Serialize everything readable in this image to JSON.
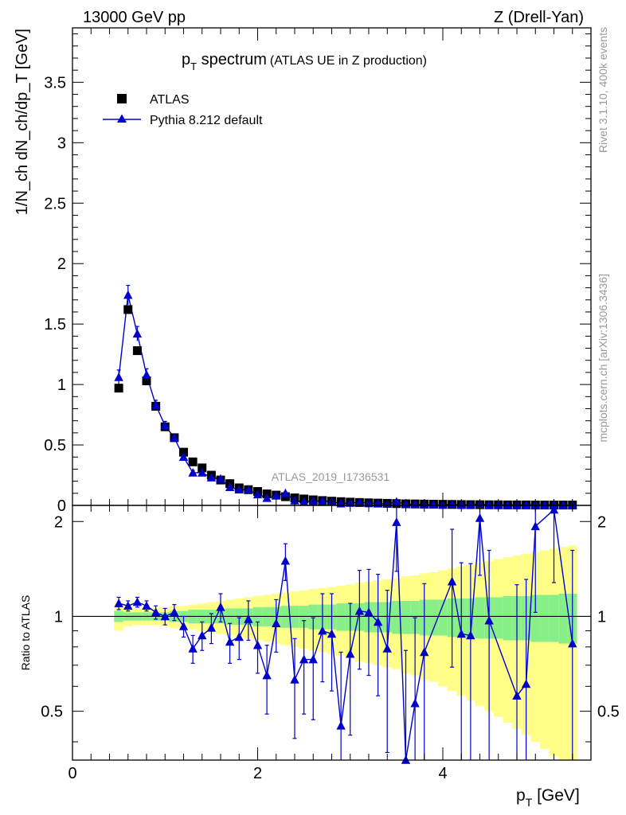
{
  "header": {
    "energy_label": "13000 GeV pp",
    "process_label": "Z (Drell-Yan)"
  },
  "side_text": {
    "rivet": "Rivet 3.1.10,  400k events",
    "mcplots": "mcplots.cern.ch [arXiv:1306.3436]"
  },
  "colors": {
    "data": "#000000",
    "mc": "#0000cc",
    "band_inner": "#88ee88",
    "band_outer": "#ffff88",
    "analysis_id": "#999999",
    "side_text": "#999999"
  },
  "chart_data": [
    {
      "type": "scatter",
      "panel": "main",
      "title_main": "p",
      "title_sub": "T",
      "title_rest": " spectrum",
      "title_paren": "(ATLAS UE in Z production)",
      "ylabel": "1/N_ch dN_ch/dp_T [GeV]",
      "xlim": [
        0,
        5.6
      ],
      "ylim": [
        0,
        3.95
      ],
      "yticks": [
        0,
        0.5,
        1,
        1.5,
        2,
        2.5,
        3,
        3.5
      ],
      "ytick_labels": [
        "0",
        "0.5",
        "1",
        "1.5",
        "2",
        "2.5",
        "3",
        "3.5"
      ],
      "analysis_id": "ATLAS_2019_I1736531",
      "legend": [
        {
          "label": "ATLAS",
          "marker": "square"
        },
        {
          "label": "Pythia 8.212 default",
          "marker": "triangle-line"
        }
      ],
      "x": [
        0.5,
        0.6,
        0.7,
        0.8,
        0.9,
        1.0,
        1.1,
        1.2,
        1.3,
        1.4,
        1.5,
        1.6,
        1.7,
        1.8,
        1.9,
        2.0,
        2.1,
        2.2,
        2.3,
        2.4,
        2.5,
        2.6,
        2.7,
        2.8,
        2.9,
        3.0,
        3.1,
        3.2,
        3.3,
        3.4,
        3.5,
        3.6,
        3.7,
        3.8,
        3.9,
        4.0,
        4.1,
        4.2,
        4.3,
        4.4,
        4.5,
        4.6,
        4.7,
        4.8,
        4.9,
        5.0,
        5.1,
        5.2,
        5.3,
        5.4
      ],
      "series": [
        {
          "name": "ATLAS",
          "values": [
            0.97,
            1.62,
            1.28,
            1.03,
            0.82,
            0.65,
            0.56,
            0.44,
            0.36,
            0.31,
            0.25,
            0.21,
            0.18,
            0.145,
            0.13,
            0.115,
            0.095,
            0.085,
            0.072,
            0.062,
            0.053,
            0.046,
            0.04,
            0.035,
            0.031,
            0.027,
            0.024,
            0.021,
            0.019,
            0.017,
            0.015,
            0.013,
            0.012,
            0.011,
            0.01,
            0.009,
            0.008,
            0.007,
            0.006,
            0.006,
            0.005,
            0.005,
            0.004,
            0.004,
            0.004,
            0.003,
            0.003,
            0.003,
            0.003,
            0.003
          ]
        },
        {
          "name": "Pythia 8.212 default",
          "values": [
            1.06,
            1.74,
            1.42,
            1.08,
            0.83,
            0.66,
            0.56,
            0.4,
            0.27,
            0.27,
            0.23,
            0.22,
            0.15,
            0.13,
            0.13,
            0.09,
            0.06,
            0.08,
            0.1,
            0.04,
            0.03,
            0.035,
            0.037,
            0.03,
            0.015,
            0.02,
            0.025,
            0.02,
            0.016,
            0.012,
            0.03,
            0.01,
            0.008,
            0.006,
            0.005,
            0.004,
            0.01,
            0.005,
            0.004,
            0.012,
            0.004,
            0.004,
            0.003,
            0.003,
            0.003,
            0.005,
            0.003,
            0.006,
            0.003,
            0.003
          ],
          "errors": [
            0.06,
            0.08,
            0.06,
            0.05,
            0.04,
            0.035,
            0.03,
            0.03,
            0.02,
            0.02,
            0.02,
            0.02,
            0.015,
            0.015,
            0.01,
            0.01,
            0.01,
            0.01,
            0.01,
            0.008,
            0.008,
            0.008,
            0.008,
            0.007,
            0.006,
            0.006,
            0.006,
            0.005,
            0.005,
            0.005,
            0.005,
            0.005,
            0.004,
            0.004,
            0.004,
            0.003,
            0.003,
            0.003,
            0.003,
            0.003,
            0.003,
            0.003,
            0.003,
            0.003,
            0.003,
            0.003,
            0.003,
            0.003,
            0.003,
            0.003
          ]
        }
      ]
    },
    {
      "type": "line",
      "panel": "ratio",
      "ylabel": "Ratio to ATLAS",
      "xlabel_main": "p",
      "xlabel_sub": "T",
      "xlabel_rest": " [GeV]",
      "xlim": [
        0,
        5.6
      ],
      "ylim": [
        0.35,
        2.25
      ],
      "xticks": [
        0,
        2,
        4
      ],
      "xtick_labels": [
        "0",
        "2",
        "4"
      ],
      "yticks": [
        0.5,
        1,
        2
      ],
      "ytick_labels": [
        "0.5",
        "1",
        "2"
      ],
      "reference_line": 1,
      "x": [
        0.5,
        0.6,
        0.7,
        0.8,
        0.9,
        1.0,
        1.1,
        1.2,
        1.3,
        1.4,
        1.5,
        1.6,
        1.7,
        1.8,
        1.9,
        2.0,
        2.1,
        2.2,
        2.3,
        2.4,
        2.5,
        2.6,
        2.7,
        2.8,
        2.9,
        3.0,
        3.1,
        3.2,
        3.3,
        3.4,
        3.5,
        3.6,
        3.7,
        3.8,
        3.9,
        4.0,
        4.1,
        4.2,
        4.3,
        4.4,
        4.5,
        4.6,
        4.7,
        4.8,
        4.9,
        5.0,
        5.1,
        5.2,
        5.3,
        5.4
      ],
      "band_inner_halfwidth": [
        0.04,
        0.03,
        0.03,
        0.03,
        0.03,
        0.03,
        0.04,
        0.04,
        0.05,
        0.05,
        0.05,
        0.05,
        0.06,
        0.06,
        0.06,
        0.07,
        0.07,
        0.07,
        0.08,
        0.08,
        0.08,
        0.09,
        0.09,
        0.09,
        0.1,
        0.1,
        0.1,
        0.11,
        0.11,
        0.11,
        0.12,
        0.12,
        0.12,
        0.13,
        0.13,
        0.13,
        0.14,
        0.14,
        0.14,
        0.15,
        0.15,
        0.15,
        0.16,
        0.16,
        0.16,
        0.17,
        0.17,
        0.17,
        0.18,
        0.18
      ],
      "band_outer_halfwidth": [
        0.1,
        0.07,
        0.06,
        0.06,
        0.06,
        0.07,
        0.08,
        0.08,
        0.09,
        0.1,
        0.11,
        0.12,
        0.13,
        0.14,
        0.15,
        0.16,
        0.17,
        0.18,
        0.19,
        0.2,
        0.21,
        0.22,
        0.23,
        0.24,
        0.25,
        0.26,
        0.28,
        0.29,
        0.3,
        0.31,
        0.32,
        0.34,
        0.35,
        0.37,
        0.38,
        0.4,
        0.42,
        0.44,
        0.46,
        0.48,
        0.5,
        0.52,
        0.54,
        0.56,
        0.58,
        0.6,
        0.62,
        0.64,
        0.66,
        0.68
      ],
      "series": [
        {
          "name": "Pythia 8.212 default",
          "values": [
            1.1,
            1.08,
            1.11,
            1.08,
            1.03,
            1.0,
            1.03,
            0.93,
            0.79,
            0.87,
            0.92,
            1.07,
            0.83,
            0.86,
            0.98,
            0.81,
            0.65,
            0.95,
            1.5,
            0.63,
            0.73,
            0.73,
            0.9,
            0.88,
            0.45,
            0.76,
            1.04,
            1.03,
            0.96,
            0.79,
            1.99,
            0.34,
            0.53,
            0.77,
            null,
            null,
            1.29,
            0.88,
            0.87,
            2.05,
            0.97,
            null,
            null,
            0.56,
            0.61,
            1.93,
            null,
            2.18,
            null,
            0.82
          ],
          "errors": [
            0.05,
            0.04,
            0.04,
            0.04,
            0.05,
            0.06,
            0.06,
            0.07,
            0.08,
            0.09,
            0.1,
            0.11,
            0.12,
            0.13,
            0.14,
            0.15,
            0.16,
            0.18,
            0.2,
            0.22,
            0.24,
            0.26,
            0.28,
            0.3,
            0.32,
            0.34,
            0.36,
            0.38,
            0.4,
            0.42,
            0.6,
            0.44,
            0.46,
            0.5,
            0.5,
            0.5,
            0.6,
            0.6,
            0.6,
            0.7,
            0.65,
            0.65,
            0.65,
            0.7,
            0.7,
            0.9,
            0.9,
            0.9,
            0.9,
            0.8
          ]
        }
      ]
    }
  ]
}
